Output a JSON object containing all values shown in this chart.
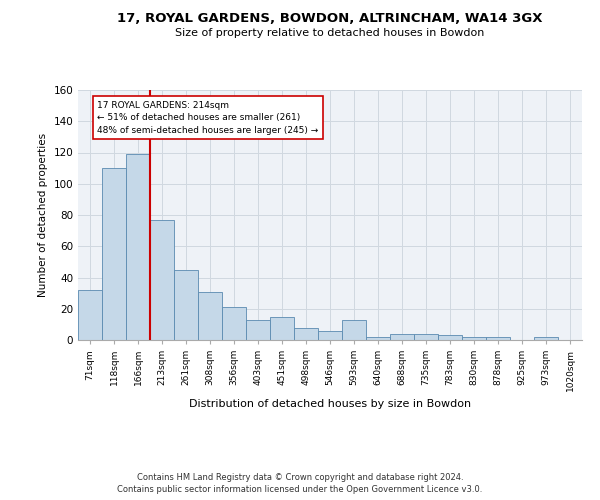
{
  "title_line1": "17, ROYAL GARDENS, BOWDON, ALTRINCHAM, WA14 3GX",
  "title_line2": "Size of property relative to detached houses in Bowdon",
  "xlabel": "Distribution of detached houses by size in Bowdon",
  "ylabel": "Number of detached properties",
  "categories": [
    "71sqm",
    "118sqm",
    "166sqm",
    "213sqm",
    "261sqm",
    "308sqm",
    "356sqm",
    "403sqm",
    "451sqm",
    "498sqm",
    "546sqm",
    "593sqm",
    "640sqm",
    "688sqm",
    "735sqm",
    "783sqm",
    "830sqm",
    "878sqm",
    "925sqm",
    "973sqm",
    "1020sqm"
  ],
  "values": [
    32,
    110,
    119,
    77,
    45,
    31,
    21,
    13,
    15,
    8,
    6,
    13,
    2,
    4,
    4,
    3,
    2,
    2,
    0,
    2,
    0
  ],
  "bar_color": "#c5d8e8",
  "bar_edge_color": "#5a8ab0",
  "vline_color": "#cc0000",
  "vline_index": 2.5,
  "annotation_text": "17 ROYAL GARDENS: 214sqm\n← 51% of detached houses are smaller (261)\n48% of semi-detached houses are larger (245) →",
  "annotation_box_color": "#ffffff",
  "annotation_box_edge": "#cc0000",
  "grid_color": "#d0d8e0",
  "background_color": "#ffffff",
  "plot_bg_color": "#eef2f7",
  "footer_line1": "Contains HM Land Registry data © Crown copyright and database right 2024.",
  "footer_line2": "Contains public sector information licensed under the Open Government Licence v3.0.",
  "ylim": [
    0,
    160
  ],
  "yticks": [
    0,
    20,
    40,
    60,
    80,
    100,
    120,
    140,
    160
  ]
}
